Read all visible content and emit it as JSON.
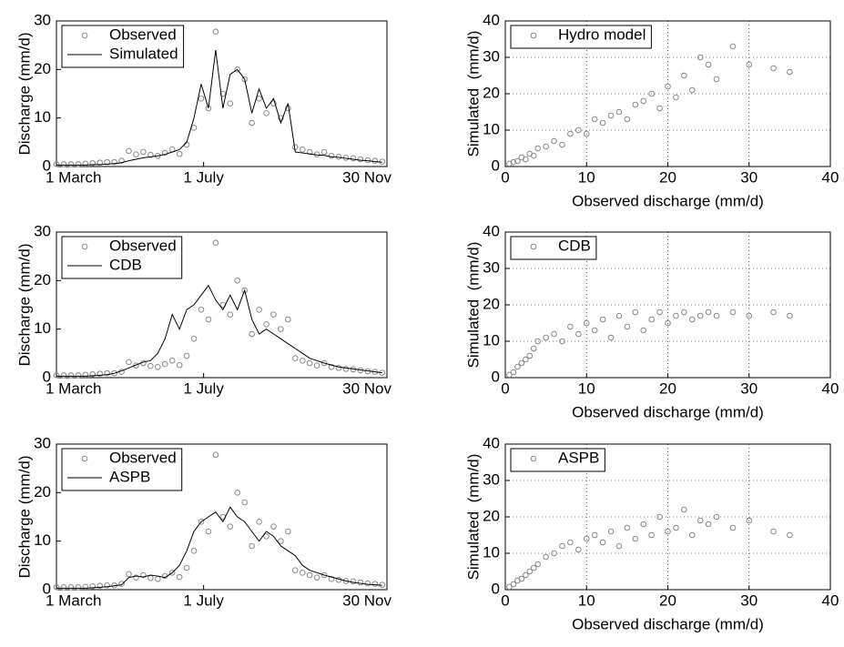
{
  "chart_data": [
    {
      "type": "line",
      "ylabel": "Discharge (mm/d)",
      "x": [
        0,
        6,
        12,
        18,
        24,
        30,
        36,
        42,
        48,
        54,
        60,
        66,
        72,
        78,
        84,
        90,
        96,
        102,
        108,
        114,
        120,
        126,
        132,
        138,
        144,
        150,
        156,
        162,
        168,
        174,
        180,
        186,
        192,
        198,
        204,
        210,
        216,
        222,
        228,
        234,
        240,
        246,
        252,
        258,
        264,
        270
      ],
      "series": [
        {
          "name": "Observed",
          "color": "#888888",
          "style": "markers",
          "values": [
            0.5,
            0.5,
            0.5,
            0.5,
            0.6,
            0.7,
            0.8,
            0.9,
            0.9,
            1.2,
            3.2,
            2.5,
            3.0,
            2.4,
            2.2,
            2.8,
            3.5,
            2.6,
            4.5,
            8,
            14,
            12,
            27.8,
            15,
            13,
            20,
            18,
            9,
            14,
            11,
            13,
            10,
            12,
            4,
            3.5,
            3,
            2.5,
            3,
            2.2,
            2,
            1.8,
            1.7,
            1.5,
            1.3,
            1.2,
            1.0
          ]
        },
        {
          "name": "Simulated",
          "color": "#000000",
          "style": "line",
          "values": [
            0.3,
            0.3,
            0.3,
            0.3,
            0.3,
            0.4,
            0.4,
            0.5,
            0.6,
            0.8,
            1.2,
            1.5,
            1.8,
            2.0,
            2.2,
            2.5,
            3,
            3.5,
            5,
            10,
            17,
            12,
            24,
            12,
            19,
            20,
            18,
            11,
            16,
            12,
            14,
            9,
            13,
            3,
            2.8,
            2.6,
            2.4,
            2.3,
            2.0,
            1.9,
            1.7,
            1.5,
            1.3,
            1.2,
            1.0,
            0.9
          ]
        }
      ],
      "xlim": [
        0,
        274
      ],
      "xticks": [
        {
          "value": 0,
          "label": "1 March"
        },
        {
          "value": 122,
          "label": "1 July"
        },
        {
          "value": 274,
          "label": "30 Nov"
        }
      ],
      "ylim": [
        0,
        30
      ],
      "yticks": [
        0,
        10,
        20,
        30
      ],
      "grid": false,
      "legend": "top-left"
    },
    {
      "type": "scatter",
      "xlabel": "Observed discharge (mm/d)",
      "ylabel": "Simulated  (mm/d)",
      "x": [
        0.5,
        1,
        1.5,
        2,
        2.5,
        3,
        3.5,
        4,
        5,
        6,
        7,
        8,
        9,
        10,
        11,
        12,
        13,
        14,
        15,
        16,
        17,
        18,
        19,
        20,
        21,
        22,
        23,
        24,
        25,
        26,
        28,
        30,
        33,
        35
      ],
      "series": [
        {
          "name": "Hydro model",
          "color": "#888888",
          "style": "markers",
          "values": [
            0.8,
            1.2,
            1.5,
            2.5,
            2,
            3.5,
            3,
            5,
            5.5,
            7,
            6,
            9,
            10,
            9,
            13,
            12,
            14,
            15,
            13,
            17,
            18,
            20,
            16,
            22,
            19,
            25,
            21,
            30,
            28,
            24,
            33,
            28,
            27,
            26
          ]
        }
      ],
      "xlim": [
        0,
        40
      ],
      "xticks": [
        0,
        10,
        20,
        30,
        40
      ],
      "ylim": [
        0,
        40
      ],
      "yticks": [
        0,
        10,
        20,
        30,
        40
      ],
      "grid": true,
      "legend": "top-left"
    },
    {
      "type": "line",
      "ylabel": "Discharge (mm/d)",
      "x": [
        0,
        6,
        12,
        18,
        24,
        30,
        36,
        42,
        48,
        54,
        60,
        66,
        72,
        78,
        84,
        90,
        96,
        102,
        108,
        114,
        120,
        126,
        132,
        138,
        144,
        150,
        156,
        162,
        168,
        174,
        180,
        186,
        192,
        198,
        204,
        210,
        216,
        222,
        228,
        234,
        240,
        246,
        252,
        258,
        264,
        270
      ],
      "series": [
        {
          "name": "Observed",
          "color": "#888888",
          "style": "markers",
          "values": [
            0.5,
            0.5,
            0.5,
            0.5,
            0.6,
            0.7,
            0.8,
            0.9,
            0.9,
            1.2,
            3.2,
            2.5,
            3.0,
            2.4,
            2.2,
            2.8,
            3.5,
            2.6,
            4.5,
            8,
            14,
            12,
            27.8,
            15,
            13,
            20,
            18,
            9,
            14,
            11,
            13,
            10,
            12,
            4,
            3.5,
            3,
            2.5,
            3,
            2.2,
            2,
            1.8,
            1.7,
            1.5,
            1.3,
            1.2,
            1.0
          ]
        },
        {
          "name": "CDB",
          "color": "#000000",
          "style": "line",
          "values": [
            0.3,
            0.3,
            0.3,
            0.3,
            0.3,
            0.4,
            0.5,
            0.6,
            0.9,
            1.4,
            2.0,
            2.6,
            3.2,
            3.5,
            5,
            8,
            13,
            10,
            14,
            15,
            17,
            19,
            16,
            14,
            17,
            14,
            18,
            12,
            9,
            10,
            9,
            8,
            7,
            6,
            5,
            4,
            3.5,
            3,
            2.6,
            2.2,
            2,
            1.8,
            1.6,
            1.4,
            1.2,
            1.0
          ]
        }
      ],
      "xlim": [
        0,
        274
      ],
      "xticks": [
        {
          "value": 0,
          "label": "1 March"
        },
        {
          "value": 122,
          "label": "1 July"
        },
        {
          "value": 274,
          "label": "30 Nov"
        }
      ],
      "ylim": [
        0,
        30
      ],
      "yticks": [
        0,
        10,
        20,
        30
      ],
      "grid": false,
      "legend": "top-left"
    },
    {
      "type": "scatter",
      "xlabel": "Observed discharge (mm/d)",
      "ylabel": "Simulated  (mm/d)",
      "x": [
        0.5,
        1,
        1.5,
        2,
        2.5,
        3,
        3.5,
        4,
        5,
        6,
        7,
        8,
        9,
        10,
        11,
        12,
        13,
        14,
        15,
        16,
        17,
        18,
        19,
        20,
        21,
        22,
        23,
        24,
        25,
        26,
        28,
        30,
        33,
        35
      ],
      "series": [
        {
          "name": "CDB",
          "color": "#888888",
          "style": "markers",
          "values": [
            0.8,
            1.5,
            3,
            4,
            5,
            6,
            8,
            10,
            11,
            12,
            10,
            14,
            12,
            15,
            13,
            16,
            11,
            17,
            14,
            18,
            13,
            16,
            18,
            15,
            17,
            18,
            16,
            17,
            18,
            17,
            18,
            17,
            18,
            17
          ]
        }
      ],
      "xlim": [
        0,
        40
      ],
      "xticks": [
        0,
        10,
        20,
        30,
        40
      ],
      "ylim": [
        0,
        40
      ],
      "yticks": [
        0,
        10,
        20,
        30,
        40
      ],
      "grid": true,
      "legend": "top-left"
    },
    {
      "type": "line",
      "ylabel": "Discharge (mm/d)",
      "x": [
        0,
        6,
        12,
        18,
        24,
        30,
        36,
        42,
        48,
        54,
        60,
        66,
        72,
        78,
        84,
        90,
        96,
        102,
        108,
        114,
        120,
        126,
        132,
        138,
        144,
        150,
        156,
        162,
        168,
        174,
        180,
        186,
        192,
        198,
        204,
        210,
        216,
        222,
        228,
        234,
        240,
        246,
        252,
        258,
        264,
        270
      ],
      "series": [
        {
          "name": "Observed",
          "color": "#888888",
          "style": "markers",
          "values": [
            0.5,
            0.5,
            0.5,
            0.5,
            0.6,
            0.7,
            0.8,
            0.9,
            0.9,
            1.2,
            3.2,
            2.5,
            3.0,
            2.4,
            2.2,
            2.8,
            3.5,
            2.6,
            4.5,
            8,
            14,
            12,
            27.8,
            15,
            13,
            20,
            18,
            9,
            14,
            11,
            13,
            10,
            12,
            4,
            3.5,
            3,
            2.5,
            3,
            2.2,
            2,
            1.8,
            1.7,
            1.5,
            1.3,
            1.2,
            1.0
          ]
        },
        {
          "name": "ASPB",
          "color": "#000000",
          "style": "line",
          "values": [
            0.3,
            0.3,
            0.3,
            0.3,
            0.3,
            0.4,
            0.5,
            0.6,
            0.8,
            1.0,
            2.5,
            2.8,
            2.6,
            3.0,
            2.8,
            2.5,
            3.5,
            5,
            8,
            12,
            14,
            15,
            16,
            14,
            17,
            15,
            14,
            12,
            10,
            12,
            11,
            9,
            8,
            7,
            5,
            4,
            3.5,
            3,
            2.6,
            2.2,
            1.8,
            1.5,
            1.3,
            1.1,
            1.0,
            0.9
          ]
        }
      ],
      "xlim": [
        0,
        274
      ],
      "xticks": [
        {
          "value": 0,
          "label": "1 March"
        },
        {
          "value": 122,
          "label": "1 July"
        },
        {
          "value": 274,
          "label": "30 Nov"
        }
      ],
      "ylim": [
        0,
        30
      ],
      "yticks": [
        0,
        10,
        20,
        30
      ],
      "grid": false,
      "legend": "top-left"
    },
    {
      "type": "scatter",
      "xlabel": "Observed discharge (mm/d)",
      "ylabel": "Simulated  (mm/d)",
      "x": [
        0.5,
        1,
        1.5,
        2,
        2.5,
        3,
        3.5,
        4,
        5,
        6,
        7,
        8,
        9,
        10,
        11,
        12,
        13,
        14,
        15,
        16,
        17,
        18,
        19,
        20,
        21,
        22,
        23,
        24,
        25,
        26,
        28,
        30,
        33,
        35
      ],
      "series": [
        {
          "name": "ASPB",
          "color": "#888888",
          "style": "markers",
          "values": [
            0.8,
            1.5,
            2.5,
            3,
            4,
            5,
            6,
            7,
            9,
            10,
            12,
            13,
            11,
            14,
            15,
            13,
            16,
            12,
            17,
            14,
            18,
            15,
            20,
            16,
            17,
            22,
            15,
            19,
            18,
            20,
            17,
            19,
            16,
            15
          ]
        }
      ],
      "xlim": [
        0,
        40
      ],
      "xticks": [
        0,
        10,
        20,
        30,
        40
      ],
      "ylim": [
        0,
        40
      ],
      "yticks": [
        0,
        10,
        20,
        30,
        40
      ],
      "grid": true,
      "legend": "top-left"
    }
  ]
}
